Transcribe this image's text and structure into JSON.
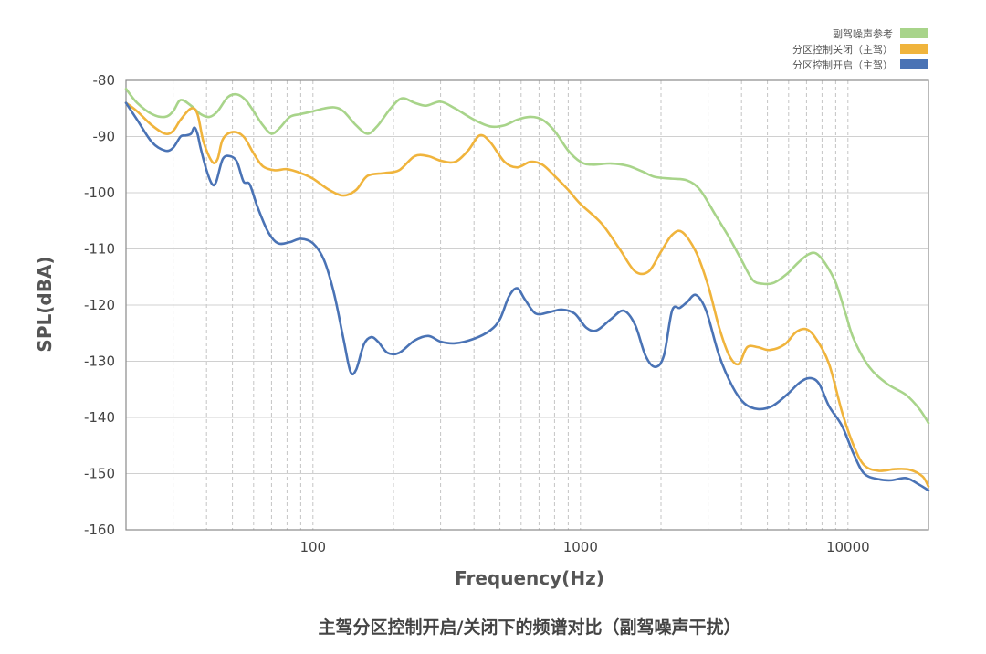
{
  "chart_data": {
    "type": "line",
    "title": "主驾分区控制开启/关闭下的频谱对比（副驾噪声干扰）",
    "xlabel": "Frequency(Hz)",
    "ylabel": "SPL(dBA)",
    "x_scale": "log",
    "xlim": [
      20,
      20000
    ],
    "ylim": [
      -160,
      -80
    ],
    "x_tick_labels": [
      {
        "value": 100,
        "label": "100"
      },
      {
        "value": 1000,
        "label": "1000"
      },
      {
        "value": 10000,
        "label": "10000"
      }
    ],
    "y_ticks": [
      -80,
      -90,
      -100,
      -110,
      -120,
      -130,
      -140,
      -150,
      -160
    ],
    "grid": {
      "horizontal": true,
      "vertical_log_minor": true
    },
    "legend_position": "top-right",
    "series": [
      {
        "name": "副驾噪声参考",
        "color": "#a8d48a",
        "points": [
          [
            20,
            -81.5
          ],
          [
            22,
            -84
          ],
          [
            25,
            -86
          ],
          [
            28,
            -86.5
          ],
          [
            30,
            -85.5
          ],
          [
            32,
            -83.5
          ],
          [
            35,
            -84.5
          ],
          [
            38,
            -86
          ],
          [
            41,
            -86.5
          ],
          [
            44,
            -85.5
          ],
          [
            48,
            -83
          ],
          [
            52,
            -82.5
          ],
          [
            56,
            -83.5
          ],
          [
            60,
            -85.5
          ],
          [
            65,
            -88
          ],
          [
            70,
            -89.5
          ],
          [
            75,
            -88.5
          ],
          [
            82,
            -86.5
          ],
          [
            90,
            -86
          ],
          [
            100,
            -85.5
          ],
          [
            110,
            -85
          ],
          [
            120,
            -84.8
          ],
          [
            130,
            -85.5
          ],
          [
            145,
            -88
          ],
          [
            160,
            -89.5
          ],
          [
            175,
            -88
          ],
          [
            195,
            -85
          ],
          [
            215,
            -83.2
          ],
          [
            240,
            -84
          ],
          [
            265,
            -84.5
          ],
          [
            300,
            -83.8
          ],
          [
            340,
            -85
          ],
          [
            400,
            -87
          ],
          [
            460,
            -88.2
          ],
          [
            520,
            -88
          ],
          [
            580,
            -87
          ],
          [
            650,
            -86.5
          ],
          [
            720,
            -87
          ],
          [
            800,
            -89
          ],
          [
            900,
            -92.5
          ],
          [
            1000,
            -94.5
          ],
          [
            1100,
            -95
          ],
          [
            1300,
            -94.8
          ],
          [
            1500,
            -95.2
          ],
          [
            1700,
            -96.2
          ],
          [
            1900,
            -97.2
          ],
          [
            2200,
            -97.5
          ],
          [
            2500,
            -97.8
          ],
          [
            2800,
            -99.5
          ],
          [
            3200,
            -104
          ],
          [
            3600,
            -108
          ],
          [
            4000,
            -112
          ],
          [
            4400,
            -115.5
          ],
          [
            4800,
            -116.2
          ],
          [
            5300,
            -116
          ],
          [
            5900,
            -114.5
          ],
          [
            6500,
            -112.5
          ],
          [
            7100,
            -111
          ],
          [
            7600,
            -110.8
          ],
          [
            8200,
            -112.5
          ],
          [
            9000,
            -116
          ],
          [
            9800,
            -121.5
          ],
          [
            10500,
            -126
          ],
          [
            12000,
            -131
          ],
          [
            14000,
            -134
          ],
          [
            16500,
            -136
          ],
          [
            18500,
            -138.5
          ],
          [
            20000,
            -141
          ]
        ]
      },
      {
        "name": "分区控制关闭（主驾）",
        "color": "#f0b43c",
        "points": [
          [
            20,
            -84
          ],
          [
            22,
            -85.5
          ],
          [
            25,
            -88
          ],
          [
            28,
            -89.5
          ],
          [
            30,
            -89
          ],
          [
            32,
            -87
          ],
          [
            35,
            -85
          ],
          [
            37,
            -86
          ],
          [
            39,
            -91
          ],
          [
            42,
            -94.5
          ],
          [
            44,
            -94
          ],
          [
            46,
            -90.5
          ],
          [
            50,
            -89.2
          ],
          [
            55,
            -90
          ],
          [
            60,
            -93
          ],
          [
            65,
            -95.3
          ],
          [
            72,
            -96
          ],
          [
            80,
            -95.8
          ],
          [
            90,
            -96.5
          ],
          [
            100,
            -97.5
          ],
          [
            115,
            -99.5
          ],
          [
            130,
            -100.5
          ],
          [
            145,
            -99.5
          ],
          [
            160,
            -97
          ],
          [
            185,
            -96.5
          ],
          [
            210,
            -96
          ],
          [
            240,
            -93.5
          ],
          [
            270,
            -93.5
          ],
          [
            300,
            -94.3
          ],
          [
            340,
            -94.5
          ],
          [
            380,
            -92.5
          ],
          [
            420,
            -89.8
          ],
          [
            460,
            -91
          ],
          [
            520,
            -94.5
          ],
          [
            580,
            -95.5
          ],
          [
            650,
            -94.5
          ],
          [
            720,
            -95
          ],
          [
            800,
            -97
          ],
          [
            900,
            -99.5
          ],
          [
            1000,
            -102
          ],
          [
            1200,
            -105.5
          ],
          [
            1400,
            -110
          ],
          [
            1600,
            -114
          ],
          [
            1800,
            -114
          ],
          [
            2000,
            -110.5
          ],
          [
            2200,
            -107.5
          ],
          [
            2400,
            -107
          ],
          [
            2700,
            -110.5
          ],
          [
            3000,
            -116.5
          ],
          [
            3300,
            -124
          ],
          [
            3600,
            -129
          ],
          [
            3900,
            -130.5
          ],
          [
            4200,
            -127.5
          ],
          [
            4600,
            -127.5
          ],
          [
            5100,
            -128
          ],
          [
            5800,
            -127
          ],
          [
            6400,
            -124.8
          ],
          [
            7000,
            -124.3
          ],
          [
            7600,
            -126
          ],
          [
            8500,
            -130.5
          ],
          [
            9500,
            -139
          ],
          [
            10500,
            -145
          ],
          [
            11500,
            -148.5
          ],
          [
            13000,
            -149.5
          ],
          [
            15000,
            -149.2
          ],
          [
            17000,
            -149.3
          ],
          [
            19000,
            -150.5
          ],
          [
            20000,
            -152.3
          ]
        ]
      },
      {
        "name": "分区控制开启（主驾）",
        "color": "#4a73b5",
        "points": [
          [
            20,
            -84
          ],
          [
            22,
            -87
          ],
          [
            25,
            -91
          ],
          [
            28,
            -92.5
          ],
          [
            30,
            -92
          ],
          [
            32,
            -90
          ],
          [
            33.5,
            -89.8
          ],
          [
            35,
            -89.5
          ],
          [
            36,
            -88.4
          ],
          [
            37,
            -89.5
          ],
          [
            38,
            -92
          ],
          [
            40,
            -96
          ],
          [
            42,
            -98.5
          ],
          [
            43.5,
            -98
          ],
          [
            46,
            -94
          ],
          [
            49,
            -93.5
          ],
          [
            52,
            -94.5
          ],
          [
            55,
            -98
          ],
          [
            58,
            -98.5
          ],
          [
            62,
            -102.5
          ],
          [
            68,
            -107
          ],
          [
            74,
            -109
          ],
          [
            82,
            -108.8
          ],
          [
            90,
            -108.2
          ],
          [
            100,
            -109
          ],
          [
            110,
            -112
          ],
          [
            120,
            -118
          ],
          [
            130,
            -126
          ],
          [
            138,
            -131.8
          ],
          [
            145,
            -131.5
          ],
          [
            155,
            -127
          ],
          [
            165,
            -125.7
          ],
          [
            175,
            -126.5
          ],
          [
            190,
            -128.5
          ],
          [
            210,
            -128.5
          ],
          [
            240,
            -126.3
          ],
          [
            270,
            -125.5
          ],
          [
            300,
            -126.5
          ],
          [
            340,
            -126.8
          ],
          [
            400,
            -126
          ],
          [
            460,
            -124.5
          ],
          [
            500,
            -122.5
          ],
          [
            540,
            -118.5
          ],
          [
            580,
            -117
          ],
          [
            620,
            -119
          ],
          [
            680,
            -121.5
          ],
          [
            760,
            -121.3
          ],
          [
            850,
            -120.8
          ],
          [
            950,
            -121.5
          ],
          [
            1050,
            -124
          ],
          [
            1150,
            -124.5
          ],
          [
            1300,
            -122.5
          ],
          [
            1450,
            -121
          ],
          [
            1600,
            -123.5
          ],
          [
            1750,
            -129
          ],
          [
            1900,
            -131
          ],
          [
            2050,
            -129
          ],
          [
            2200,
            -121
          ],
          [
            2350,
            -120.5
          ],
          [
            2500,
            -119.5
          ],
          [
            2700,
            -118.2
          ],
          [
            2950,
            -121
          ],
          [
            3300,
            -129
          ],
          [
            3700,
            -134.5
          ],
          [
            4100,
            -137.5
          ],
          [
            4600,
            -138.5
          ],
          [
            5200,
            -138
          ],
          [
            5900,
            -136
          ],
          [
            6600,
            -133.8
          ],
          [
            7200,
            -133
          ],
          [
            7800,
            -134
          ],
          [
            8500,
            -138
          ],
          [
            9500,
            -141.5
          ],
          [
            10500,
            -146.5
          ],
          [
            11500,
            -150
          ],
          [
            13000,
            -151
          ],
          [
            14500,
            -151.2
          ],
          [
            16500,
            -150.8
          ],
          [
            18500,
            -152
          ],
          [
            20000,
            -153
          ]
        ]
      }
    ]
  }
}
